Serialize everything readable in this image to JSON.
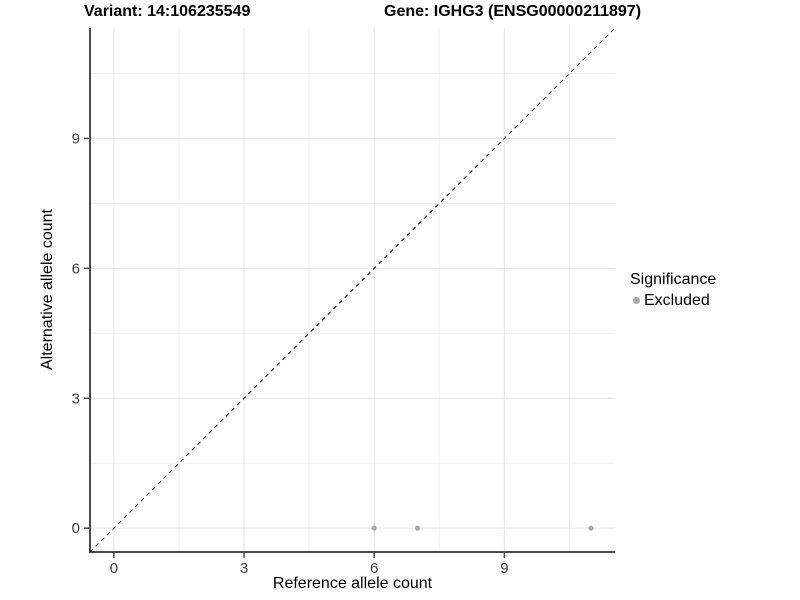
{
  "title": {
    "variant": "Variant: 14:106235549",
    "gene": "Gene: IGHG3 (ENSG00000211897)"
  },
  "legend": {
    "title": "Significance",
    "items": [
      {
        "label": "Excluded",
        "color": "#a8a8a8"
      }
    ]
  },
  "chart_data": {
    "type": "scatter",
    "title": "Variant: 14:106235549   Gene: IGHG3 (ENSG00000211897)",
    "xlabel": "Reference allele count",
    "ylabel": "Alternative allele count",
    "xlim": [
      -0.55,
      11.55
    ],
    "ylim": [
      -0.55,
      11.55
    ],
    "x_ticks": [
      0,
      3,
      6,
      9
    ],
    "y_ticks": [
      0,
      3,
      6,
      9
    ],
    "x_minor_ticks": [
      1.5,
      4.5,
      7.5,
      10.5
    ],
    "y_minor_ticks": [
      1.5,
      4.5,
      7.5,
      10.5
    ],
    "grid": true,
    "legend_position": "right",
    "series": [
      {
        "name": "Excluded",
        "color": "#a8a8a8",
        "points": [
          [
            6,
            0
          ],
          [
            7,
            0
          ],
          [
            11,
            0
          ]
        ]
      }
    ],
    "reference_line": {
      "slope": 1,
      "intercept": 0,
      "style": "dashed",
      "color": "#000000"
    },
    "style": {
      "major_grid_color": "#e4e4e4",
      "minor_grid_color": "#f0f0f0",
      "axis_line_color": "#4a4a4a",
      "tick_label_color": "#404040",
      "point_radius": 2.5
    }
  }
}
